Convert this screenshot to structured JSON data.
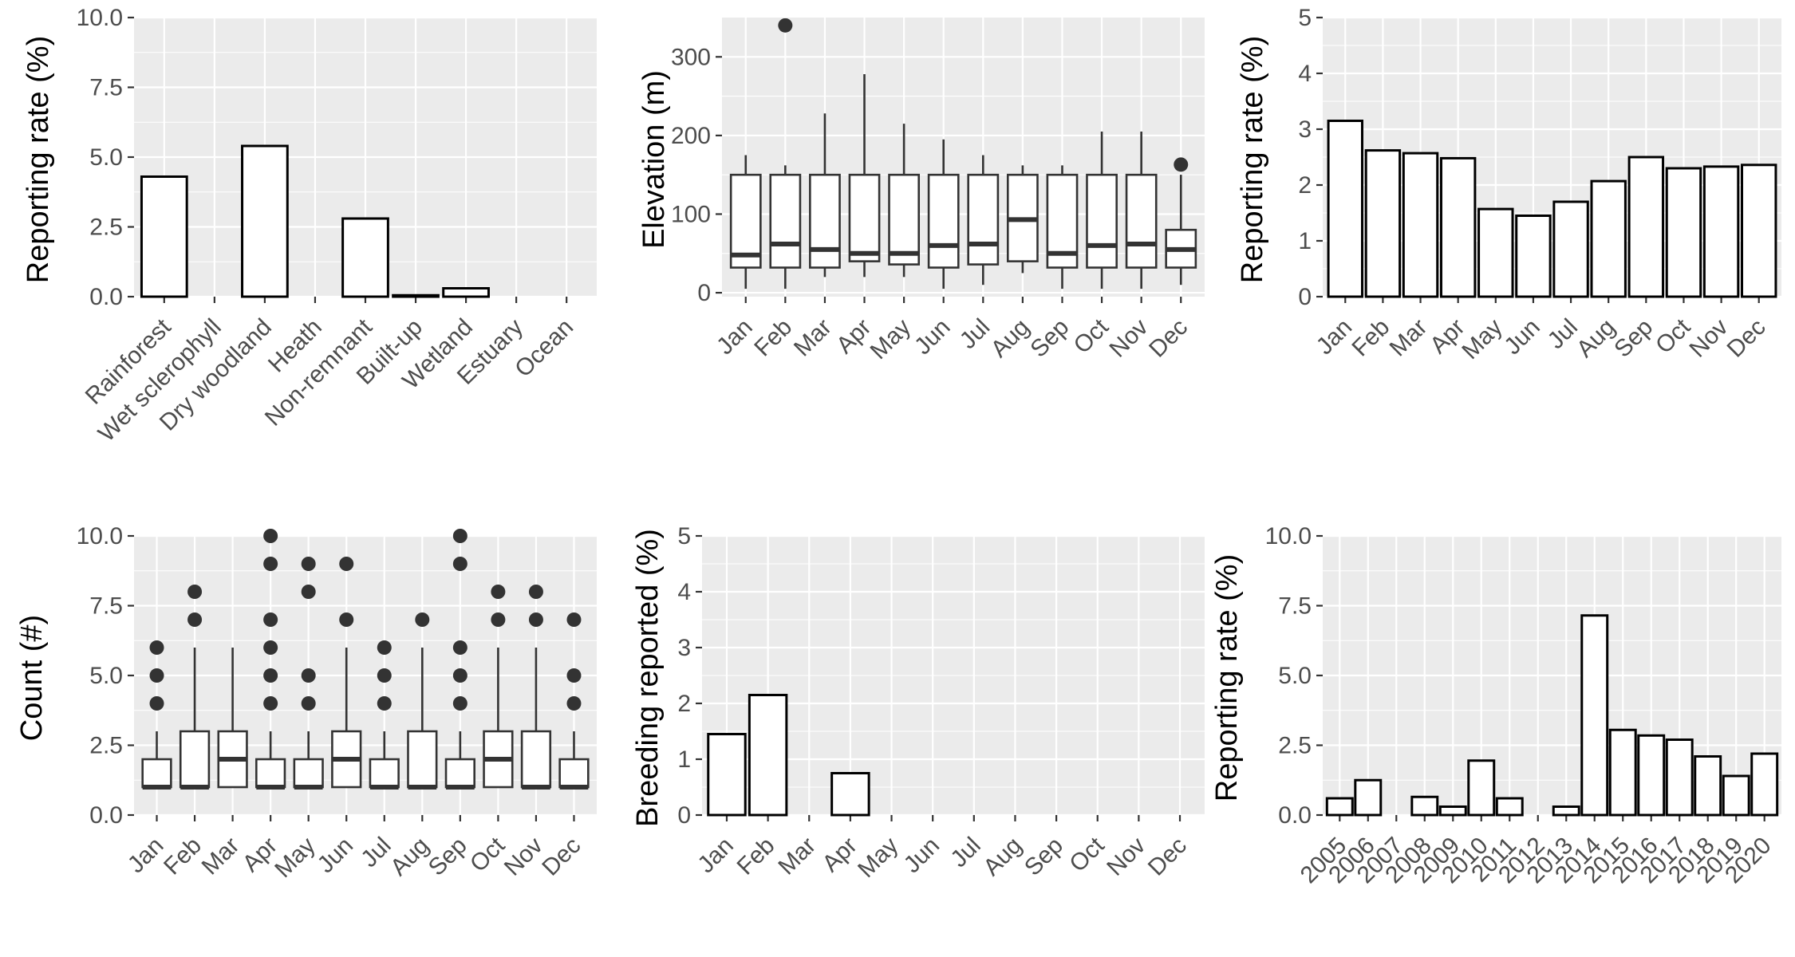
{
  "chart_data": [
    {
      "type": "bar",
      "title": "",
      "xlabel": "",
      "ylabel": "Reporting rate (%)",
      "ylim": [
        0,
        10
      ],
      "yticks": [
        0,
        2.5,
        5,
        7.5,
        10
      ],
      "ytick_labels": [
        "0.0",
        "2.5",
        "5.0",
        "7.5",
        "10.0"
      ],
      "categories": [
        "Rainforest",
        "Wet sclerophyll",
        "Dry woodland",
        "Heath",
        "Non-remnant",
        "Built-up",
        "Wetland",
        "Estuary",
        "Ocean"
      ],
      "values": [
        4.3,
        0,
        5.4,
        0,
        2.8,
        0.05,
        0.3,
        0,
        0
      ],
      "x_tick_rotation": 45,
      "grid": true
    },
    {
      "type": "box",
      "title": "",
      "xlabel": "",
      "ylabel": "Elevation (m)",
      "ylim": [
        -5,
        350
      ],
      "yticks": [
        0,
        100,
        200,
        300
      ],
      "ytick_labels": [
        "0",
        "100",
        "200",
        "300"
      ],
      "categories": [
        "Jan",
        "Feb",
        "Mar",
        "Apr",
        "May",
        "Jun",
        "Jul",
        "Aug",
        "Sep",
        "Oct",
        "Nov",
        "Dec"
      ],
      "boxes": [
        {
          "low": 5,
          "q1": 32,
          "median": 48,
          "q3": 150,
          "high": 175,
          "outliers": []
        },
        {
          "low": 5,
          "q1": 32,
          "median": 62,
          "q3": 150,
          "high": 162,
          "outliers": [
            340
          ]
        },
        {
          "low": 20,
          "q1": 32,
          "median": 55,
          "q3": 150,
          "high": 228,
          "outliers": []
        },
        {
          "low": 20,
          "q1": 40,
          "median": 50,
          "q3": 150,
          "high": 278,
          "outliers": []
        },
        {
          "low": 20,
          "q1": 36,
          "median": 50,
          "q3": 150,
          "high": 215,
          "outliers": []
        },
        {
          "low": 5,
          "q1": 32,
          "median": 60,
          "q3": 150,
          "high": 195,
          "outliers": []
        },
        {
          "low": 10,
          "q1": 36,
          "median": 62,
          "q3": 150,
          "high": 175,
          "outliers": []
        },
        {
          "low": 25,
          "q1": 40,
          "median": 93,
          "q3": 150,
          "high": 162,
          "outliers": []
        },
        {
          "low": 5,
          "q1": 32,
          "median": 50,
          "q3": 150,
          "high": 162,
          "outliers": []
        },
        {
          "low": 5,
          "q1": 32,
          "median": 60,
          "q3": 150,
          "high": 205,
          "outliers": []
        },
        {
          "low": 5,
          "q1": 32,
          "median": 62,
          "q3": 150,
          "high": 205,
          "outliers": []
        },
        {
          "low": 10,
          "q1": 32,
          "median": 55,
          "q3": 80,
          "high": 150,
          "outliers": [
            163
          ]
        }
      ],
      "x_tick_rotation": 45,
      "grid": true
    },
    {
      "type": "bar",
      "title": "",
      "xlabel": "",
      "ylabel": "Reporting rate (%)",
      "ylim": [
        0,
        5
      ],
      "yticks": [
        0,
        1,
        2,
        3,
        4,
        5
      ],
      "ytick_labels": [
        "0",
        "1",
        "2",
        "3",
        "4",
        "5"
      ],
      "categories": [
        "Jan",
        "Feb",
        "Mar",
        "Apr",
        "May",
        "Jun",
        "Jul",
        "Aug",
        "Sep",
        "Oct",
        "Nov",
        "Dec"
      ],
      "values": [
        3.15,
        2.62,
        2.57,
        2.48,
        1.57,
        1.45,
        1.7,
        2.07,
        2.5,
        2.3,
        2.33,
        2.36
      ],
      "x_tick_rotation": 45,
      "grid": true
    },
    {
      "type": "box",
      "title": "",
      "xlabel": "",
      "ylabel": "Count (#)",
      "ylim": [
        0,
        10
      ],
      "yticks": [
        0,
        2.5,
        5,
        7.5,
        10
      ],
      "ytick_labels": [
        "0.0",
        "2.5",
        "5.0",
        "7.5",
        "10.0"
      ],
      "categories": [
        "Jan",
        "Feb",
        "Mar",
        "Apr",
        "May",
        "Jun",
        "Jul",
        "Aug",
        "Sep",
        "Oct",
        "Nov",
        "Dec"
      ],
      "boxes": [
        {
          "low": 1,
          "q1": 1,
          "median": 1,
          "q3": 2,
          "high": 3,
          "outliers": [
            4,
            5,
            6
          ]
        },
        {
          "low": 1,
          "q1": 1,
          "median": 1,
          "q3": 3,
          "high": 6,
          "outliers": [
            7,
            8
          ]
        },
        {
          "low": 1,
          "q1": 1,
          "median": 2,
          "q3": 3,
          "high": 6,
          "outliers": []
        },
        {
          "low": 1,
          "q1": 1,
          "median": 1,
          "q3": 2,
          "high": 3,
          "outliers": [
            4,
            5,
            6,
            7,
            9,
            10
          ]
        },
        {
          "low": 1,
          "q1": 1,
          "median": 1,
          "q3": 2,
          "high": 3,
          "outliers": [
            4,
            5,
            8,
            9
          ]
        },
        {
          "low": 1,
          "q1": 1,
          "median": 2,
          "q3": 3,
          "high": 6,
          "outliers": [
            7,
            9
          ]
        },
        {
          "low": 1,
          "q1": 1,
          "median": 1,
          "q3": 2,
          "high": 3,
          "outliers": [
            4,
            5,
            6
          ]
        },
        {
          "low": 1,
          "q1": 1,
          "median": 1,
          "q3": 3,
          "high": 6,
          "outliers": [
            7
          ]
        },
        {
          "low": 1,
          "q1": 1,
          "median": 1,
          "q3": 2,
          "high": 3,
          "outliers": [
            4,
            5,
            6,
            9,
            10
          ]
        },
        {
          "low": 1,
          "q1": 1,
          "median": 2,
          "q3": 3,
          "high": 6,
          "outliers": [
            7,
            8
          ]
        },
        {
          "low": 1,
          "q1": 1,
          "median": 1,
          "q3": 3,
          "high": 6,
          "outliers": [
            7,
            8
          ]
        },
        {
          "low": 1,
          "q1": 1,
          "median": 1,
          "q3": 2,
          "high": 3,
          "outliers": [
            4,
            5,
            7
          ]
        }
      ],
      "x_tick_rotation": 45,
      "grid": true
    },
    {
      "type": "bar",
      "title": "",
      "xlabel": "",
      "ylabel": "Breeding reported (%)",
      "ylim": [
        0,
        5
      ],
      "yticks": [
        0,
        1,
        2,
        3,
        4,
        5
      ],
      "ytick_labels": [
        "0",
        "1",
        "2",
        "3",
        "4",
        "5"
      ],
      "categories": [
        "Jan",
        "Feb",
        "Mar",
        "Apr",
        "May",
        "Jun",
        "Jul",
        "Aug",
        "Sep",
        "Oct",
        "Nov",
        "Dec"
      ],
      "values": [
        1.45,
        2.15,
        0,
        0.75,
        0,
        0,
        0,
        0,
        0,
        0,
        0,
        0
      ],
      "x_tick_rotation": 45,
      "grid": true
    },
    {
      "type": "bar",
      "title": "",
      "xlabel": "",
      "ylabel": "Reporting rate (%)",
      "ylim": [
        0,
        10
      ],
      "yticks": [
        0,
        2.5,
        5,
        7.5,
        10
      ],
      "ytick_labels": [
        "0.0",
        "2.5",
        "5.0",
        "7.5",
        "10.0"
      ],
      "categories": [
        "2005",
        "2006",
        "2007",
        "2008",
        "2009",
        "2010",
        "2011",
        "2012",
        "2013",
        "2014",
        "2015",
        "2016",
        "2017",
        "2018",
        "2019",
        "2020"
      ],
      "values": [
        0.6,
        1.25,
        0,
        0.65,
        0.3,
        1.95,
        0.6,
        0,
        0.3,
        7.15,
        3.05,
        2.85,
        2.7,
        2.1,
        1.4,
        2.2
      ],
      "x_tick_rotation": 45,
      "grid": true
    }
  ]
}
